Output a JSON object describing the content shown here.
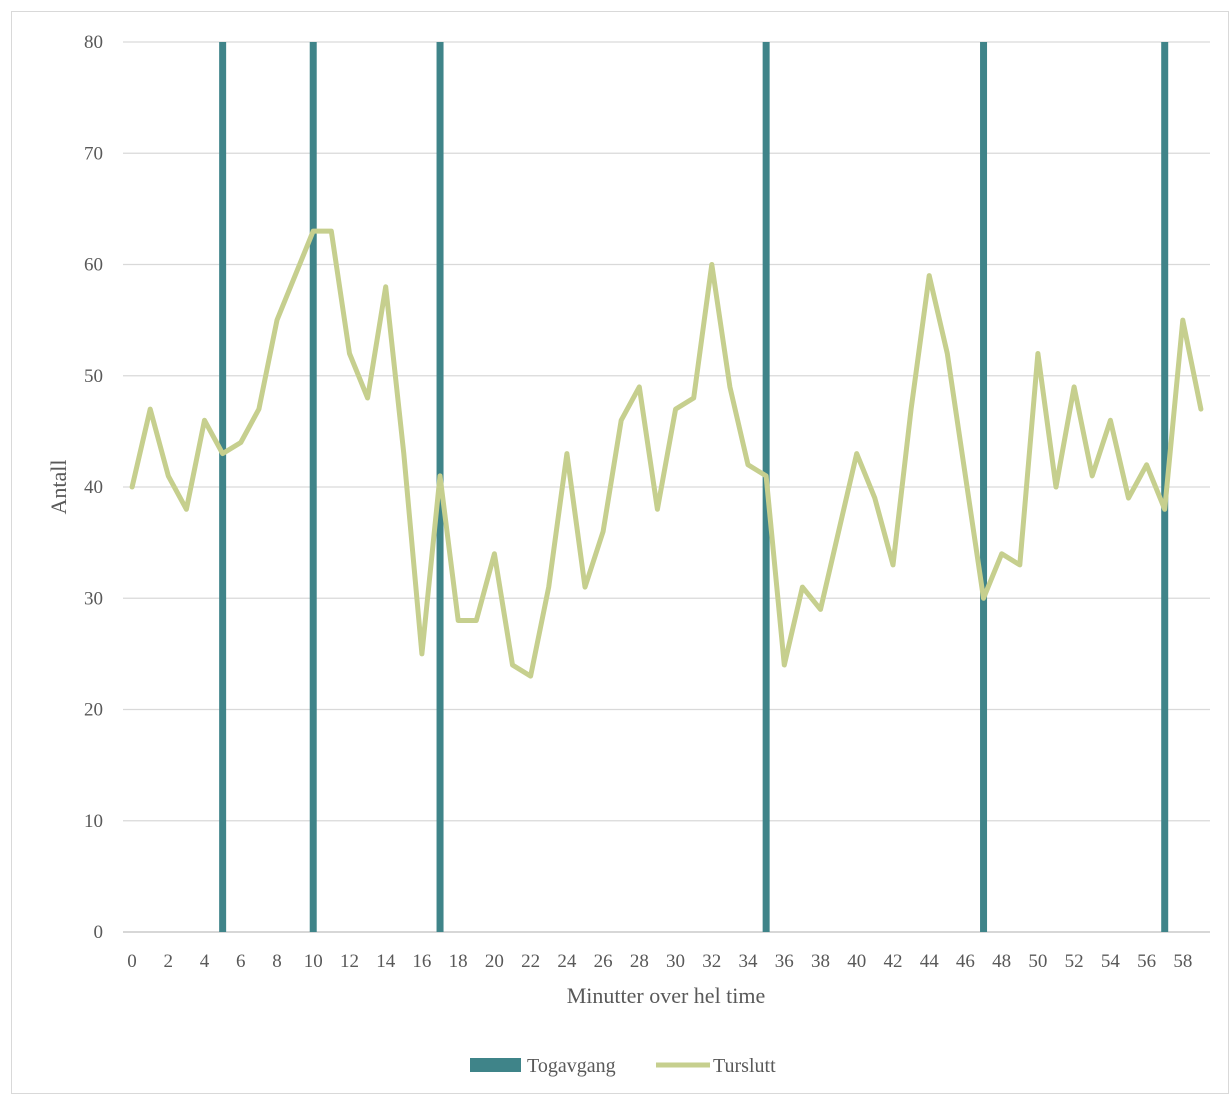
{
  "chart_data": {
    "type": "bar+line",
    "xlabel": "Minutter over hel time",
    "ylabel": "Antall",
    "ylim": [
      0,
      80
    ],
    "yticks": [
      0,
      10,
      20,
      30,
      40,
      50,
      60,
      70,
      80
    ],
    "x": [
      0,
      1,
      2,
      3,
      4,
      5,
      6,
      7,
      8,
      9,
      10,
      11,
      12,
      13,
      14,
      15,
      16,
      17,
      18,
      19,
      20,
      21,
      22,
      23,
      24,
      25,
      26,
      27,
      28,
      29,
      30,
      31,
      32,
      33,
      34,
      35,
      36,
      37,
      38,
      39,
      40,
      41,
      42,
      43,
      44,
      45,
      46,
      47,
      48,
      49,
      50,
      51,
      52,
      53,
      54,
      55,
      56,
      57,
      58,
      59
    ],
    "xtick_labels": [
      "0",
      "2",
      "4",
      "6",
      "8",
      "10",
      "12",
      "14",
      "16",
      "18",
      "20",
      "22",
      "24",
      "26",
      "28",
      "30",
      "32",
      "34",
      "36",
      "38",
      "40",
      "42",
      "44",
      "46",
      "48",
      "50",
      "52",
      "54",
      "56",
      "58"
    ],
    "grid": true,
    "legend_position": "bottom",
    "series": [
      {
        "name": "Togavgang",
        "type": "bar",
        "color": "#3f8489",
        "minutes": [
          5,
          10,
          17,
          35,
          47,
          57
        ],
        "value": 80
      },
      {
        "name": "Turslutt",
        "type": "line",
        "color": "#c6cf8e",
        "values": [
          40,
          47,
          41,
          38,
          46,
          43,
          44,
          47,
          55,
          59,
          63,
          63,
          52,
          48,
          58,
          43,
          25,
          41,
          28,
          28,
          34,
          24,
          23,
          31,
          43,
          31,
          36,
          46,
          49,
          38,
          47,
          48,
          60,
          49,
          42,
          41,
          24,
          31,
          29,
          36,
          43,
          39,
          33,
          47,
          59,
          52,
          41,
          30,
          34,
          33,
          52,
          40,
          49,
          41,
          46,
          39,
          42,
          38,
          55,
          47
        ]
      }
    ]
  }
}
